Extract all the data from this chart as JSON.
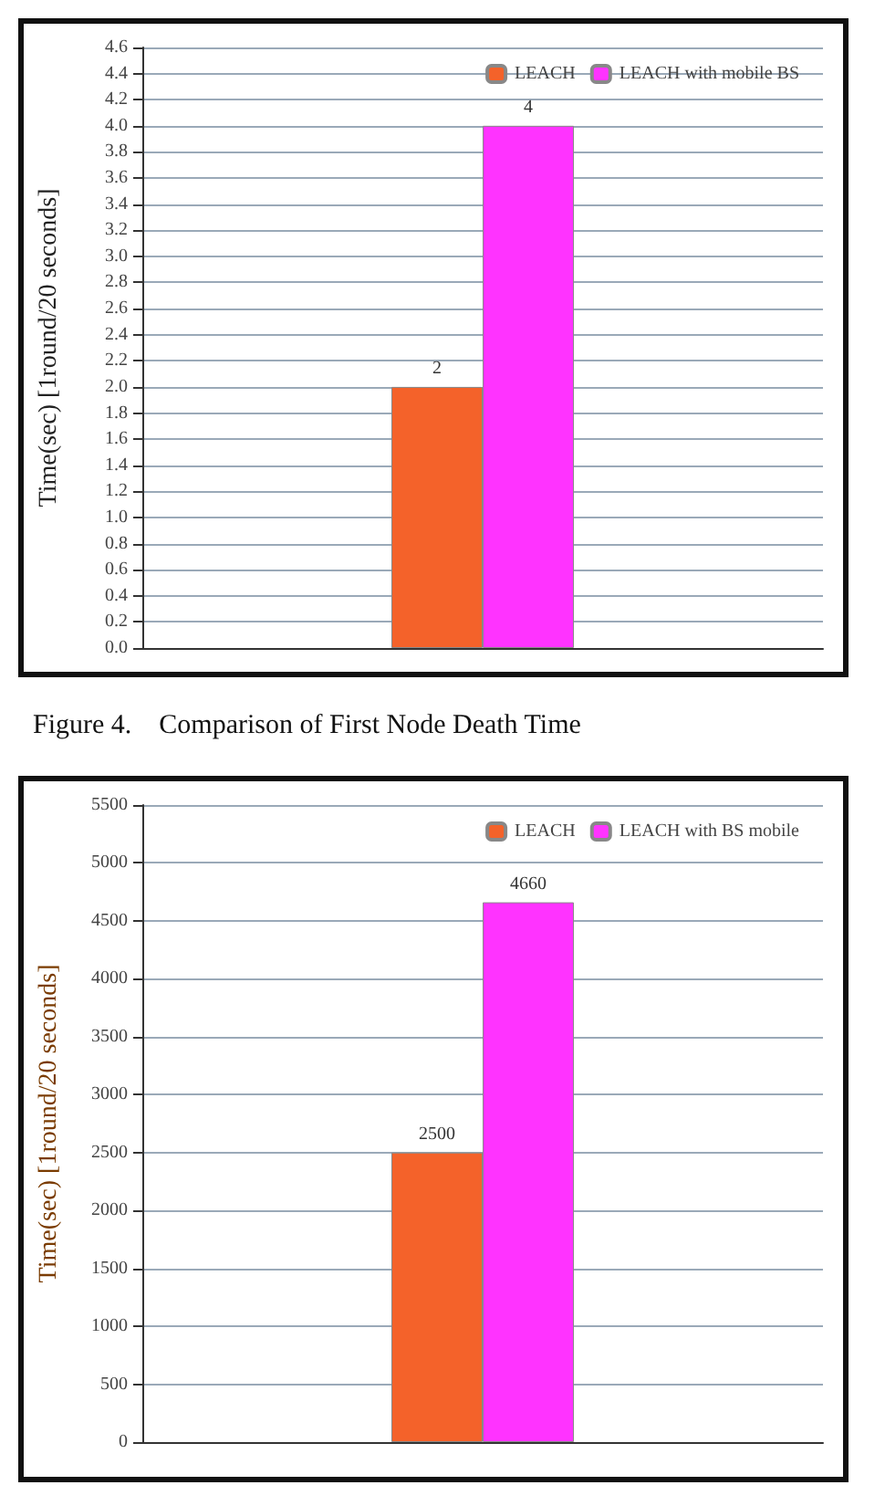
{
  "chart_data": [
    {
      "type": "bar",
      "ylabel": "Time(sec) [1round/20 seconds]",
      "annotations": [
        "Figure 4.    Comparison of First Node Death Time"
      ],
      "categories": [
        null
      ],
      "series": [
        {
          "name": "LEACH",
          "color": "#f4622a",
          "values": [
            2
          ]
        },
        {
          "name": "LEACH with mobile BS",
          "color": "#ff33ff",
          "values": [
            4
          ]
        }
      ],
      "ylim": [
        0,
        4.6
      ],
      "yticks": [
        {
          "value": 0,
          "label": "0.0"
        },
        0.2,
        0.4,
        0.6,
        0.8,
        {
          "value": 1,
          "label": "1.0"
        },
        1.2,
        1.4,
        1.6,
        1.8,
        {
          "value": 2,
          "label": "2.0"
        },
        2.2,
        2.4,
        2.6,
        2.8,
        {
          "value": 3,
          "label": "3.0"
        },
        3.2,
        3.4,
        3.6,
        3.8,
        {
          "value": 4,
          "label": "4.0"
        },
        4.2,
        4.4,
        4.6
      ],
      "grid": "y",
      "legend": "top right",
      "data_labels": true
    },
    {
      "type": "bar",
      "ylabel": "Time(sec) [1round/20 seconds]",
      "categories": [
        null
      ],
      "series": [
        {
          "name": "LEACH",
          "color": "#f4622a",
          "values": [
            2500
          ]
        },
        {
          "name": "LEACH with BS mobile",
          "color": "#ff33ff",
          "values": [
            4660
          ]
        }
      ],
      "ylim": [
        0,
        5500
      ],
      "yticks": [
        0,
        500,
        1000,
        1500,
        2000,
        2500,
        3000,
        3500,
        4000,
        4500,
        5000,
        5500
      ],
      "grid": "y",
      "legend": "top right",
      "data_labels": true
    }
  ]
}
